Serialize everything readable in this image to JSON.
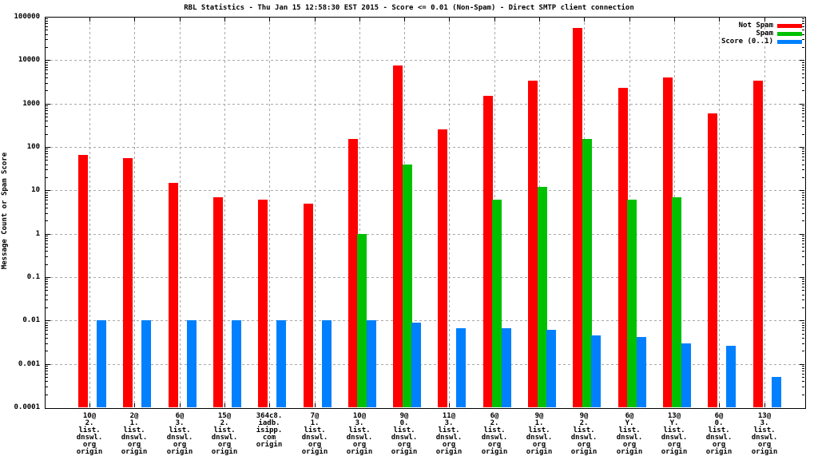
{
  "title": "RBL Statistics - Thu Jan 15 12:58:30 EST 2015 - Score <= 0.01 (Non-Spam) - Direct SMTP client connection",
  "chart_data": {
    "type": "bar",
    "title": "RBL Statistics - Thu Jan 15 12:58:30 EST 2015 - Score <= 0.01 (Non-Spam) - Direct SMTP client connection",
    "ylabel": "Message Count or Spam Score",
    "xlabel": "",
    "y_scale": "log",
    "ylim": [
      0.0001,
      100000
    ],
    "grid": true,
    "legend_position": "top-right",
    "y_tick_labels": [
      "100000",
      "10000",
      "1000",
      "100",
      "10",
      "1",
      "0.1",
      "0.01",
      "0.001",
      "0.0001"
    ],
    "categories": [
      [
        "10@",
        "2.",
        "list.",
        "dnswl.",
        "org",
        "origin"
      ],
      [
        "2@",
        "1.",
        "list.",
        "dnswl.",
        "org",
        "origin"
      ],
      [
        "6@",
        "3.",
        "list.",
        "dnswl.",
        "org",
        "origin"
      ],
      [
        "15@",
        "2.",
        "list.",
        "dnswl.",
        "org",
        "origin"
      ],
      [
        "364c8.",
        "iadb.",
        "isipp.",
        "com",
        "origin"
      ],
      [
        "7@",
        "1.",
        "list.",
        "dnswl.",
        "org",
        "origin"
      ],
      [
        "10@",
        "3.",
        "list.",
        "dnswl.",
        "org",
        "origin"
      ],
      [
        "9@",
        "0.",
        "list.",
        "dnswl.",
        "org",
        "origin"
      ],
      [
        "11@",
        "3.",
        "list.",
        "dnswl.",
        "org",
        "origin"
      ],
      [
        "6@",
        "2.",
        "list.",
        "dnswl.",
        "org",
        "origin"
      ],
      [
        "9@",
        "1.",
        "list.",
        "dnswl.",
        "org",
        "origin"
      ],
      [
        "9@",
        "2.",
        "list.",
        "dnswl.",
        "org",
        "origin"
      ],
      [
        "6@",
        "Y.",
        "list.",
        "dnswl.",
        "org",
        "origin"
      ],
      [
        "13@",
        "Y.",
        "list.",
        "dnswl.",
        "org",
        "origin"
      ],
      [
        "6@",
        "0.",
        "list.",
        "dnswl.",
        "org",
        "origin"
      ],
      [
        "13@",
        "3.",
        "list.",
        "dnswl.",
        "org",
        "origin"
      ]
    ],
    "series": [
      {
        "name": "Not Spam",
        "color": "#ff0000",
        "values": [
          65,
          55,
          15,
          7,
          6,
          5,
          150,
          7500,
          250,
          1500,
          3400,
          55000,
          2300,
          4000,
          600,
          3400
        ]
      },
      {
        "name": "Spam",
        "color": "#00c000",
        "values": [
          null,
          null,
          null,
          null,
          null,
          null,
          1,
          40,
          null,
          6,
          12,
          150,
          6,
          7,
          null,
          null
        ]
      },
      {
        "name": "Score (0..1)",
        "color": "#0080ff",
        "values": [
          0.01,
          0.01,
          0.01,
          0.01,
          0.01,
          0.01,
          0.01,
          0.009,
          0.0065,
          0.0065,
          0.006,
          0.0045,
          0.0042,
          0.003,
          0.0026,
          0.0005
        ]
      }
    ]
  },
  "colors": {
    "grid": "#a8a8a8",
    "border": "#000000",
    "background": "#ffffff"
  }
}
